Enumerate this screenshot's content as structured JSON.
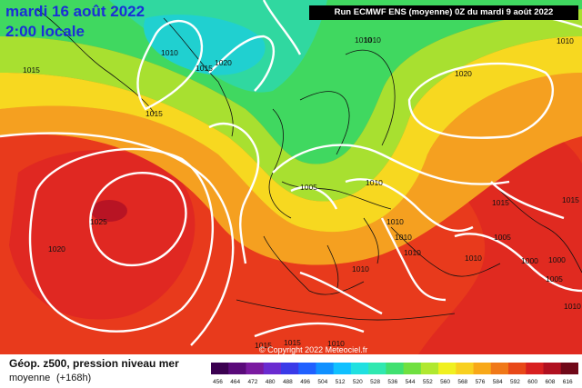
{
  "header": {
    "date": "mardi 16 août 2022",
    "time": "2:00 locale",
    "run_info": "Run ECMWF ENS (moyenne) 0Z du mardi 9 août 2022"
  },
  "copyright": "© Copyright 2022 Meteociel.fr",
  "legend": {
    "title": "Géop. z500, pression niveau mer",
    "subtitle": "moyenne",
    "range": "(+168h)",
    "scale_labels": [
      "456",
      "464",
      "472",
      "480",
      "488",
      "496",
      "504",
      "512",
      "520",
      "528",
      "536",
      "544",
      "552",
      "560",
      "568",
      "576",
      "584",
      "592",
      "600",
      "608",
      "616"
    ],
    "scale_colors": [
      "#3b0050",
      "#5a0a7a",
      "#7a1aa0",
      "#6a2bd0",
      "#3a3ae8",
      "#2060ff",
      "#1090ff",
      "#10c0ff",
      "#20e0e0",
      "#30e8b0",
      "#40e070",
      "#70e040",
      "#b0e830",
      "#f0f020",
      "#f8d020",
      "#f8a818",
      "#f07818",
      "#e84818",
      "#d82020",
      "#b01020",
      "#700818"
    ]
  },
  "isobars": [
    {
      "label": "1010"
    },
    {
      "label": "1015"
    },
    {
      "label": "1020"
    },
    {
      "label": "1015"
    },
    {
      "label": "1015"
    },
    {
      "label": "1010"
    },
    {
      "label": "1020"
    },
    {
      "label": "1025"
    },
    {
      "label": "1020"
    },
    {
      "label": "1005"
    },
    {
      "label": "1010"
    },
    {
      "label": "1010"
    },
    {
      "label": "1010"
    },
    {
      "label": "1010"
    },
    {
      "label": "1010"
    },
    {
      "label": "1015"
    },
    {
      "label": "1005"
    },
    {
      "label": "1010"
    },
    {
      "label": "1000"
    },
    {
      "label": "1000"
    },
    {
      "label": "1010"
    },
    {
      "label": "1015"
    },
    {
      "label": "1010"
    },
    {
      "label": "1015"
    },
    {
      "label": "1010"
    },
    {
      "label": "1005"
    },
    {
      "label": "1010"
    },
    {
      "label": "1015"
    }
  ]
}
